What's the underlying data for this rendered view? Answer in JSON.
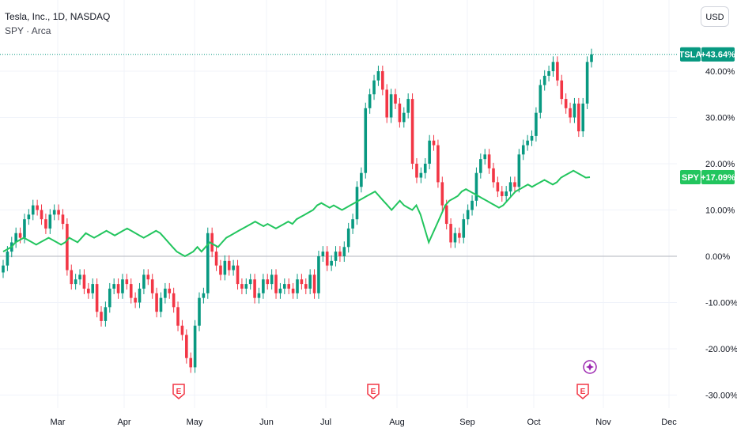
{
  "header": {
    "title": "Tesla, Inc., 1D, NASDAQ",
    "compare_symbol": "SPY · Arca"
  },
  "toolbar": {
    "currency": "USD"
  },
  "colors": {
    "up": "#089981",
    "down": "#f23645",
    "spy_line": "#22c55e",
    "grid": "#f0f3fa",
    "zero_line": "#b2b5be",
    "last_price_line": "#089981",
    "earnings_marker": "#f23645",
    "event_marker": "#9c27b0"
  },
  "chart_data": {
    "type": "line",
    "y_scale": "percent",
    "ylim": [
      -32,
      46
    ],
    "grid": true,
    "x_tick_labels": [
      "Mar",
      "Apr",
      "May",
      "Jun",
      "Jul",
      "Aug",
      "Sep",
      "Oct",
      "Nov",
      "Dec"
    ],
    "y_tick_labels": [
      "40.00%",
      "30.00%",
      "20.00%",
      "10.00%",
      "0.00%",
      "-10.00%",
      "-20.00%",
      "-30.00%"
    ],
    "y_tick_values": [
      40,
      30,
      20,
      10,
      0,
      -10,
      -20,
      -30
    ],
    "series": [
      {
        "name": "TSLA",
        "style": "candlestick",
        "last_value_label": "+43.64%",
        "last_value": 43.64,
        "values": [
          -2,
          1,
          3,
          5,
          4,
          8,
          9,
          11,
          10,
          8,
          6,
          9,
          10,
          9,
          7,
          -3,
          -6,
          -5,
          -4,
          -7,
          -8,
          -6,
          -12,
          -14,
          -11,
          -7,
          -6,
          -8,
          -5,
          -6,
          -9,
          -10,
          -7,
          -4,
          -5,
          -8,
          -12,
          -9,
          -7,
          -8,
          -11,
          -15,
          -17,
          -22,
          -24,
          -15,
          -9,
          -8,
          5,
          1,
          -2,
          -4,
          -1,
          -3,
          -2,
          -6,
          -7,
          -6,
          -5,
          -9,
          -8,
          -5,
          -6,
          -4,
          -8,
          -7,
          -6,
          -7,
          -8,
          -5,
          -6,
          -7,
          -4,
          -8,
          0,
          1,
          -2,
          -1,
          1,
          0,
          2,
          6,
          8,
          15,
          18,
          32,
          35,
          38,
          40,
          36,
          30,
          35,
          33,
          29,
          31,
          34,
          20,
          17,
          18,
          20,
          25,
          24,
          16,
          11,
          7,
          3,
          5,
          4,
          8,
          10,
          12,
          18,
          21,
          22,
          19,
          16,
          14,
          13,
          14,
          16,
          15,
          22,
          24,
          25,
          26,
          31,
          37,
          39,
          40,
          42,
          38,
          34,
          32,
          30,
          33,
          27,
          33,
          42,
          43.64
        ],
        "earnings_marker_label": "E"
      },
      {
        "name": "SPY",
        "style": "line",
        "last_value_label": "+17.09%",
        "last_value": 17.09,
        "values": [
          1,
          1.5,
          2,
          3,
          3.5,
          4,
          3.5,
          3,
          2.5,
          3,
          3.5,
          4,
          3.5,
          3,
          2.5,
          3,
          4,
          3.5,
          3,
          4,
          5,
          4.5,
          4,
          4.5,
          5,
          5.5,
          5,
          4.5,
          5,
          5.5,
          6,
          5.5,
          5,
          4.5,
          4,
          4.5,
          5,
          5.5,
          5,
          4,
          3,
          2,
          1,
          0.5,
          0,
          0.5,
          1,
          2,
          1,
          2,
          3,
          2.5,
          2,
          3,
          4,
          4.5,
          5,
          5.5,
          6,
          6.5,
          7,
          7.5,
          7,
          6.5,
          7,
          6.5,
          6,
          6.5,
          7,
          7.5,
          7,
          8,
          8.5,
          9,
          9.5,
          10,
          11,
          11.5,
          11,
          10.5,
          11,
          10.5,
          10,
          10.5,
          11,
          11.5,
          12,
          12.5,
          13,
          13.5,
          14,
          13,
          12,
          11,
          10,
          11,
          12,
          11,
          10.5,
          10,
          11,
          9,
          6,
          3,
          5,
          7,
          9,
          11,
          12,
          12.5,
          13,
          14,
          14.5,
          14,
          13.5,
          13,
          12.5,
          12,
          11.5,
          11,
          10.5,
          11,
          12,
          13,
          14,
          14.5,
          15,
          15.5,
          15,
          15.5,
          16,
          16.5,
          16,
          15.5,
          16,
          17,
          17.5,
          18,
          18.5,
          18,
          17.5,
          17,
          17.09
        ]
      }
    ],
    "event_markers": [
      "E",
      "E",
      "E"
    ]
  }
}
